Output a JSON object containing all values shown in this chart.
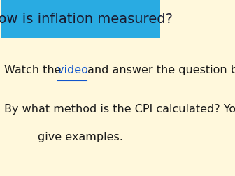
{
  "title": "How is inflation measured?",
  "title_bg_color": "#29ABE2",
  "title_text_color": "#1a1a2e",
  "body_bg_color": "#FFF8DC",
  "line1_plain1": "Watch the ",
  "line1_link": "video ",
  "line1_plain2": "and answer the question be",
  "line2_plain1": "By what method is the CPI calculated? You m",
  "line3": "give examples.",
  "body_text_color": "#1a1a1a",
  "link_color": "#1155CC",
  "body_fontsize": 11.5,
  "title_fontsize": 14
}
